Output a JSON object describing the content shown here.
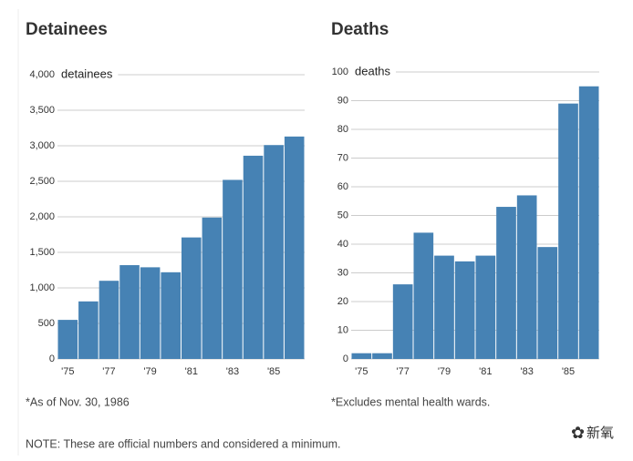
{
  "chart_data": [
    {
      "type": "bar",
      "title": "Detainees",
      "unit_label": "detainees",
      "note": "*As of Nov. 30, 1986",
      "categories": [
        "'75",
        null,
        "'77",
        null,
        "'79",
        null,
        "'81",
        null,
        "'83",
        null,
        "'85",
        null
      ],
      "values": [
        550,
        810,
        1100,
        1320,
        1290,
        1220,
        1710,
        1990,
        2520,
        2860,
        3010,
        3130
      ],
      "color": "#4682b4",
      "ylim": [
        0,
        4000
      ],
      "yticks": [
        0,
        500,
        {
          "value": 1000,
          "label": "1,000"
        },
        {
          "value": 1500,
          "label": "1,500"
        },
        {
          "value": 2000,
          "label": "2,000"
        },
        {
          "value": 2500,
          "label": "2,500"
        },
        {
          "value": 3000,
          "label": "3,000"
        },
        {
          "value": 3500,
          "label": "3,500"
        },
        {
          "value": 4000,
          "label": "4,000"
        }
      ],
      "grid": true
    },
    {
      "type": "bar",
      "title": "Deaths",
      "unit_label": "deaths",
      "note": "*Excludes mental health wards.",
      "categories": [
        "'75",
        null,
        "'77",
        null,
        "'79",
        null,
        "'81",
        null,
        "'83",
        null,
        "'85",
        null
      ],
      "values": [
        2,
        2,
        26,
        44,
        36,
        34,
        36,
        53,
        57,
        39,
        89,
        95
      ],
      "color": "#4682b4",
      "ylim": [
        0,
        100
      ],
      "yticks": [
        0,
        10,
        20,
        30,
        40,
        50,
        60,
        70,
        80,
        90,
        100
      ],
      "grid": true
    }
  ],
  "note": "NOTE: These are official numbers and considered a minimum.",
  "watermark": "新氧"
}
